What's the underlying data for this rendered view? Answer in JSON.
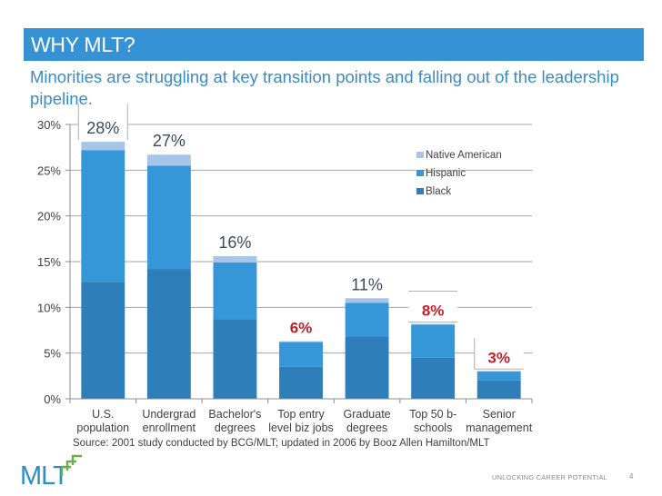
{
  "header": {
    "title": "WHY MLT?",
    "subtitle": "Minorities are struggling at key transition points and falling out of the leadership pipeline."
  },
  "footer": {
    "source": "Source: 2001 study conducted by BCG/MLT; updated in 2006 by Booz Allen Hamilton/MLT",
    "tagline": "UNLOCKING CAREER POTENTIAL",
    "page_number": "4",
    "logo_text": "MLT",
    "logo_icon": "ascending-arrows-icon"
  },
  "colors": {
    "title_bar": "#3592d4",
    "subtitle": "#3a8cc4",
    "black_series": "#2e7fb9",
    "hispanic_series": "#3597d8",
    "native_american_series": "#a6c5e8",
    "highlight_label": "#c0202a",
    "normal_label": "#3b4a5a",
    "logo_blue": "#2a8fc4",
    "logo_green": "#6ab04c"
  },
  "chart_data": {
    "type": "bar",
    "stacked": true,
    "title": "",
    "xlabel": "",
    "ylabel": "",
    "ylim": [
      0,
      30
    ],
    "yticks": [
      0,
      5,
      10,
      15,
      20,
      25,
      30
    ],
    "ytick_labels": [
      "0%",
      "5%",
      "10%",
      "15%",
      "20%",
      "25%",
      "30%"
    ],
    "grid": true,
    "legend_position": "top-right",
    "categories": [
      [
        "U.S.",
        "population"
      ],
      [
        "Undergrad",
        "enrollment"
      ],
      [
        "Bachelor's",
        "degrees"
      ],
      [
        "Top entry",
        "level biz jobs"
      ],
      [
        "Graduate",
        "degrees"
      ],
      [
        "Top 50 b-",
        "schools"
      ],
      [
        "Senior",
        "management"
      ]
    ],
    "series": [
      {
        "name": "Black",
        "values": [
          12.8,
          14.2,
          8.7,
          3.5,
          6.8,
          4.5,
          2.0
        ]
      },
      {
        "name": "Hispanic",
        "values": [
          14.4,
          11.3,
          6.2,
          2.7,
          3.7,
          3.6,
          1.0
        ]
      },
      {
        "name": "Native American",
        "values": [
          0.9,
          1.2,
          0.7,
          0.1,
          0.5,
          0.1,
          0.05
        ]
      }
    ],
    "legend_order": [
      "Native American",
      "Hispanic",
      "Black"
    ],
    "total_labels": [
      "28%",
      "27%",
      "16%",
      "6%",
      "11%",
      "8%",
      "3%"
    ],
    "highlighted_totals": [
      false,
      false,
      false,
      true,
      false,
      true,
      true
    ],
    "boxed_totals": [
      true,
      false,
      false,
      false,
      false,
      true,
      true
    ]
  }
}
